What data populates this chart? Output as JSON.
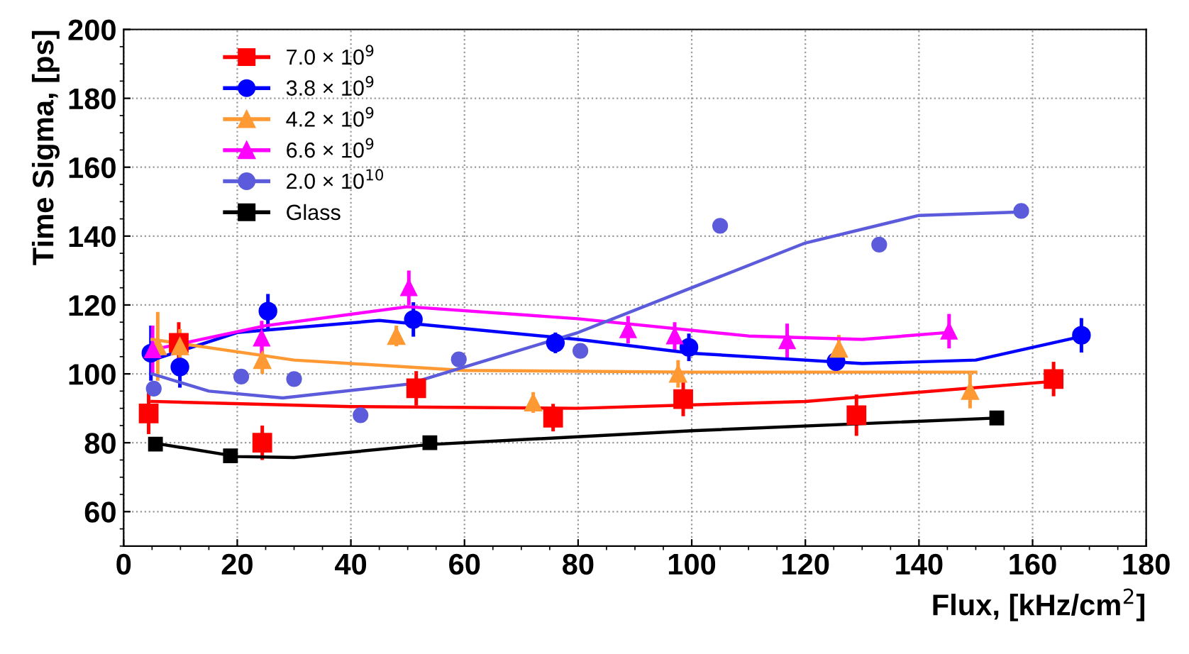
{
  "chart_data": {
    "type": "scatter",
    "xlabel": "Flux, [kHz/cm$^{2}$]",
    "ylabel": "Time Sigma, [ps]",
    "xlim": [
      0,
      180
    ],
    "xticks": [
      0,
      20,
      40,
      60,
      80,
      100,
      120,
      140,
      160,
      180
    ],
    "ylim": [
      50,
      200
    ],
    "yticks": [
      60,
      80,
      100,
      120,
      140,
      160,
      180,
      200
    ],
    "grid": true,
    "legend": "top left",
    "line_style": "solid",
    "series": [
      {
        "name": "7.0 × 10$^{9}$",
        "color": "#ff0000",
        "marker": "square",
        "x": [
          4.4,
          9.7,
          24.4,
          51.5,
          75.6,
          98.5,
          129,
          163.7
        ],
        "values": [
          88.5,
          109,
          80,
          95.8,
          87.3,
          92.7,
          88,
          98.5
        ],
        "errors": [
          6,
          6,
          5,
          5,
          4,
          5,
          6,
          5
        ]
      },
      {
        "name": "3.8 × 10$^{9}$",
        "color": "#0000ff",
        "marker": "circle",
        "x": [
          4.8,
          9.9,
          25.4,
          51,
          76,
          99.5,
          125.4,
          168.6
        ],
        "values": [
          106,
          102,
          118.2,
          115.8,
          109,
          107.7,
          103.6,
          111.2
        ],
        "errors": [
          8,
          6,
          5,
          5,
          3,
          4,
          3,
          5
        ]
      },
      {
        "name": "4.2 × 10$^{9}$",
        "color": "#ff9933",
        "marker": "triangle",
        "x": [
          6,
          9.9,
          24.4,
          48,
          72.1,
          97.6,
          125.9,
          149
        ],
        "values": [
          108,
          108,
          104,
          111,
          91.7,
          100,
          107.3,
          95
        ],
        "errors": [
          10,
          5,
          4,
          3,
          3,
          4,
          4,
          5
        ]
      },
      {
        "name": "6.6 × 10$^{9}$",
        "color": "#ff00ff",
        "marker": "triangle",
        "x": [
          5.1,
          24.3,
          50.2,
          88.8,
          97,
          116.8,
          145.3
        ],
        "values": [
          107,
          110.4,
          125,
          112.8,
          111,
          109.6,
          112.4
        ],
        "errors": [
          7,
          5,
          5,
          4,
          4,
          5,
          5
        ]
      },
      {
        "name": "2.0 × 10$^{10}$",
        "color": "#5b5bdb",
        "marker": "circle",
        "x": [
          5.3,
          20.7,
          30,
          41.7,
          59,
          80.4,
          105,
          133,
          158
        ],
        "values": [
          95.7,
          99.2,
          98.5,
          88,
          104.2,
          106.7,
          143,
          137.5,
          147.3
        ]
      },
      {
        "name": "Glass",
        "color": "#000000",
        "marker": "square",
        "x": [
          5.6,
          18.8,
          53.9,
          153.7
        ],
        "values": [
          79.6,
          76.2,
          80,
          87.2
        ]
      },
      {
        "type": "line",
        "color": "#ff0000",
        "x": [
          5,
          40,
          80,
          120,
          165
        ],
        "values": [
          92,
          90.5,
          90,
          92,
          98
        ]
      },
      {
        "type": "line",
        "color": "#0000ff",
        "x": [
          5,
          20,
          45,
          80,
          100,
          130,
          150,
          169
        ],
        "values": [
          104,
          112,
          115.5,
          110,
          106,
          103,
          104,
          111
        ]
      },
      {
        "type": "line",
        "color": "#ff9933",
        "x": [
          5,
          30,
          60,
          100,
          150
        ],
        "values": [
          110,
          104,
          101,
          100.5,
          100.5
        ]
      },
      {
        "type": "line",
        "color": "#ff00ff",
        "x": [
          5,
          25,
          50,
          80,
          110,
          130,
          145
        ],
        "values": [
          107,
          114,
          119.5,
          116,
          111,
          110,
          112
        ]
      },
      {
        "type": "line",
        "color": "#5b5bdb",
        "x": [
          5,
          15,
          28,
          50,
          80,
          100,
          120,
          140,
          158
        ],
        "values": [
          100,
          95,
          93,
          97,
          112,
          125,
          138,
          146,
          147
        ]
      },
      {
        "type": "line",
        "color": "#000000",
        "x": [
          5,
          20,
          30,
          54,
          100,
          154
        ],
        "values": [
          80,
          76,
          75.7,
          79.5,
          83.5,
          87.2
        ]
      }
    ]
  }
}
